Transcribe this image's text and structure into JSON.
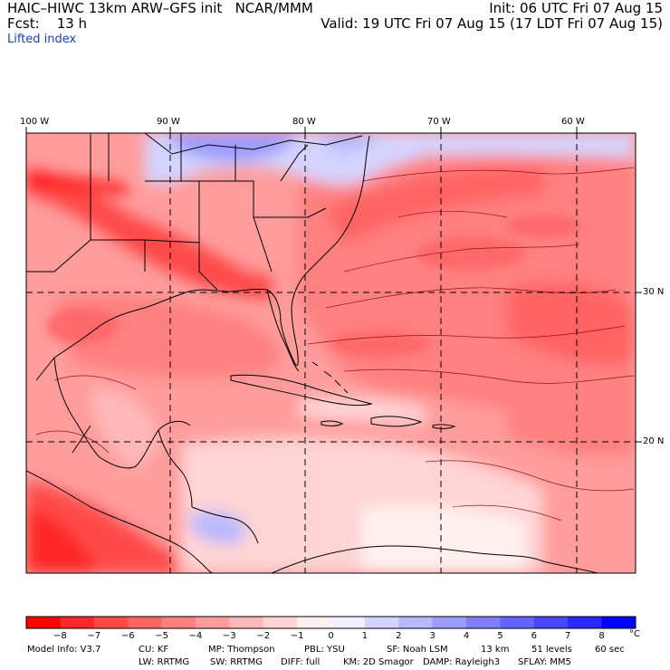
{
  "header": {
    "line1_left": "HAIC–HIWC 13km ARW–GFS init   NCAR/MMM",
    "line2_left": "Fcst:    13 h",
    "line1_right": "Init: 06 UTC Fri 07 Aug 15",
    "line2_right": "Valid: 19 UTC Fri 07 Aug 15 (17 LDT Fri 07 Aug 15)",
    "field": "Lifted index"
  },
  "axes": {
    "lon_labels": [
      "100 W",
      "90 W",
      "80 W",
      "70 W",
      "60 W"
    ],
    "lat_labels": [
      "30 N",
      "20 N"
    ]
  },
  "colorbar": {
    "ticks": [
      "−8",
      "−7",
      "−6",
      "−5",
      "−4",
      "−3",
      "−2",
      "−1",
      "0",
      "1",
      "2",
      "3",
      "4",
      "5",
      "6",
      "7",
      "8"
    ],
    "unit": "°C",
    "colors": [
      "#ff0000",
      "#ff2828",
      "#ff4848",
      "#ff6464",
      "#ff8080",
      "#ff9c9c",
      "#ffb8b8",
      "#ffd4d4",
      "#fff0f0",
      "#f0f0ff",
      "#d4d4ff",
      "#b8b8ff",
      "#9c9cff",
      "#8080ff",
      "#6464ff",
      "#4848ff",
      "#2828ff",
      "#0000ff"
    ]
  },
  "model_info": {
    "row1": [
      "Model Info: V3.7",
      "CU: KF",
      "MP: Thompson",
      "PBL: YSU",
      "SF: Noah LSM",
      "13 km",
      "51 levels",
      "60 sec"
    ],
    "row2": [
      "LW: RRTMG",
      "SW: RRTMG",
      "DIFF: full",
      "KM: 2D Smagor",
      "DAMP: Rayleigh3",
      "SFLAY: MM5"
    ]
  }
}
